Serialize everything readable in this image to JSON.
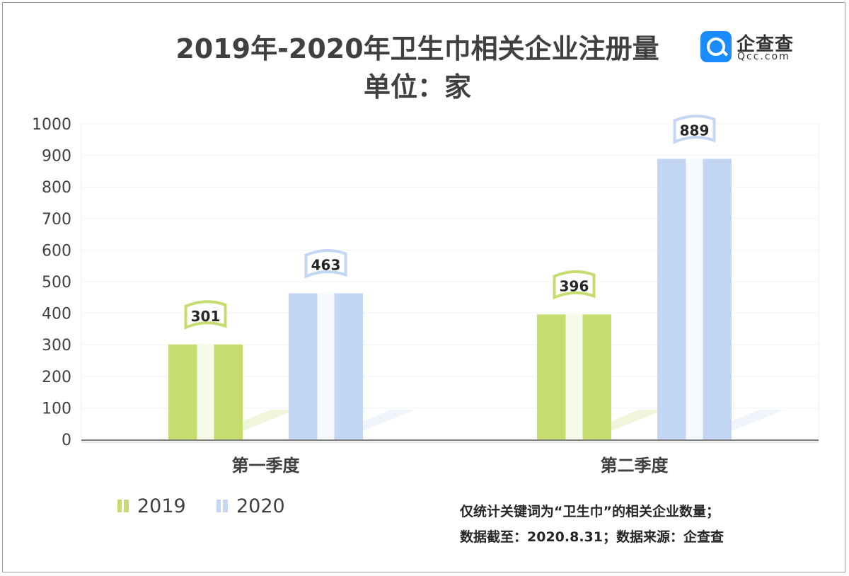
{
  "title": "2019年-2020年卫生巾相关企业注册量",
  "subtitle": "单位：家",
  "logo": {
    "name": "企查查",
    "site": "Qcc.com"
  },
  "notes": [
    "仅统计关键词为“卫生巾”的相关企业数量；",
    "数据截至：2020.8.31；数据来源：企查查"
  ],
  "colors": {
    "s2019": "#c5dd6e",
    "s2020": "#c3d6f4",
    "axis": "#7f7f7f",
    "grid": "#f2f2f2",
    "text": "#404040"
  },
  "chart_data": {
    "type": "bar",
    "categories": [
      "第一季度",
      "第二季度"
    ],
    "series": [
      {
        "name": "2019",
        "values": [
          301,
          396
        ]
      },
      {
        "name": "2020",
        "values": [
          463,
          889
        ]
      }
    ],
    "yticks": [
      "0",
      "100",
      "200",
      "300",
      "400",
      "500",
      "600",
      "700",
      "800",
      "900",
      "1000"
    ],
    "ylim": [
      0,
      1000
    ],
    "legend_position": "bottom-left",
    "grid": true
  }
}
